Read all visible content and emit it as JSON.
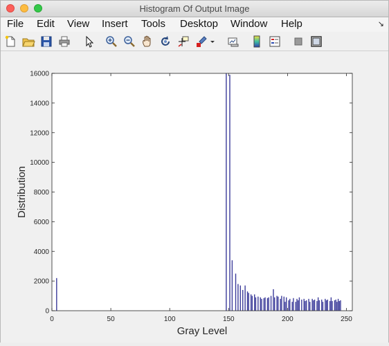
{
  "window": {
    "title": "Histogram Of Output Image"
  },
  "menu": [
    "File",
    "Edit",
    "View",
    "Insert",
    "Tools",
    "Desktop",
    "Window",
    "Help"
  ],
  "menu_overflow_icon": "arrow-corner-icon",
  "toolbar_icons": [
    "new-figure-icon",
    "open-file-icon",
    "save-icon",
    "print-icon",
    "pointer-icon",
    "zoom-in-icon",
    "zoom-out-icon",
    "pan-icon",
    "rotate-3d-icon",
    "data-cursor-icon",
    "brush-icon",
    "brush-dropdown-icon",
    "link-plot-icon",
    "colorbar-icon",
    "legend-icon",
    "hide-plot-tools-icon",
    "show-plot-tools-icon"
  ],
  "chart_data": {
    "type": "bar",
    "xlabel": "Gray Level",
    "ylabel": "Distribution",
    "xlim": [
      0,
      255
    ],
    "ylim": [
      0,
      16000
    ],
    "xticks": [
      0,
      50,
      100,
      150,
      200,
      250
    ],
    "yticks": [
      0,
      2000,
      4000,
      6000,
      8000,
      10000,
      12000,
      14000,
      16000
    ],
    "grid": false,
    "x": [
      4,
      148,
      151,
      153,
      156,
      158,
      160,
      162,
      164,
      166,
      167,
      169,
      170,
      172,
      173,
      175,
      177,
      178,
      180,
      181,
      183,
      184,
      186,
      188,
      189,
      191,
      192,
      194,
      195,
      197,
      198,
      199,
      201,
      202,
      204,
      205,
      207,
      208,
      209,
      210,
      212,
      214,
      215,
      216,
      218,
      219,
      221,
      222,
      223,
      225,
      226,
      227,
      229,
      230,
      232,
      233,
      234,
      236,
      237,
      238,
      240,
      241,
      242,
      243,
      244,
      245
    ],
    "values": [
      2200,
      16000,
      15900,
      3400,
      2500,
      1800,
      1700,
      1400,
      1700,
      1300,
      1200,
      1100,
      1000,
      1100,
      900,
      950,
      900,
      800,
      850,
      900,
      850,
      900,
      1000,
      1450,
      900,
      1000,
      950,
      800,
      1000,
      950,
      600,
      900,
      700,
      800,
      600,
      850,
      600,
      800,
      700,
      900,
      750,
      800,
      650,
      700,
      800,
      600,
      800,
      700,
      750,
      650,
      900,
      700,
      750,
      600,
      800,
      700,
      750,
      650,
      900,
      650,
      700,
      750,
      600,
      800,
      650,
      700
    ]
  }
}
